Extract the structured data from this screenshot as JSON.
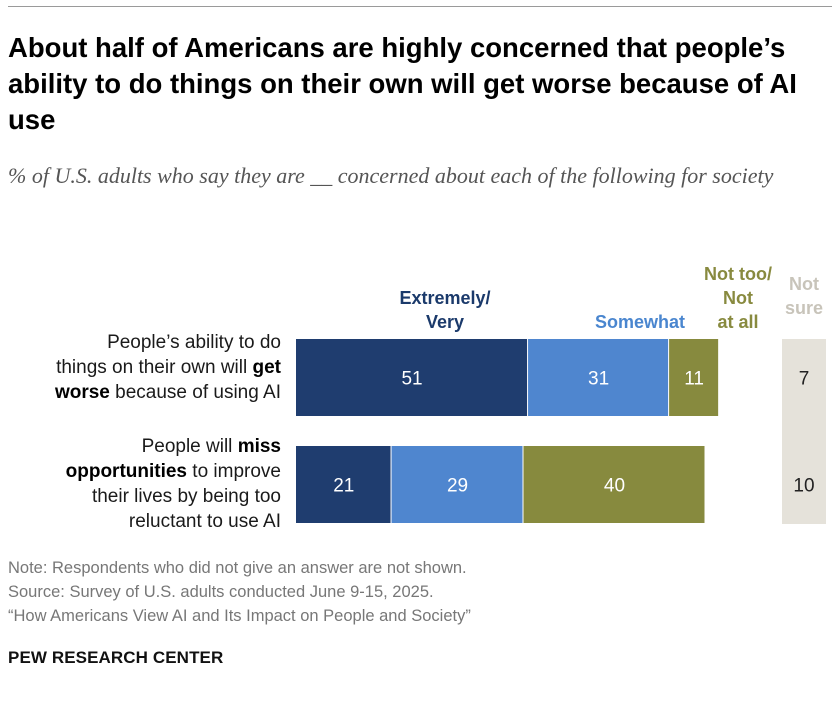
{
  "title": "About half of Americans are highly concerned that people’s ability to do things on their own will get worse because of AI use",
  "subtitle": "% of U.S. adults who say they are __ concerned about each of the following for society",
  "chart_data": {
    "type": "bar",
    "orientation": "horizontal",
    "stacked": true,
    "categories": [
      "People’s ability to do things on their own will get worse because of using AI",
      "People will miss opportunities to improve their lives by being too reluctant to use AI"
    ],
    "category_lines": [
      [
        [
          {
            "t": "People’s ability to do",
            "b": false
          }
        ],
        [
          {
            "t": "things on their own will ",
            "b": false
          },
          {
            "t": "get",
            "b": true
          }
        ],
        [
          {
            "t": "worse",
            "b": true
          },
          {
            "t": " because of using AI",
            "b": false
          }
        ]
      ],
      [
        [
          {
            "t": "People will ",
            "b": false
          },
          {
            "t": "miss",
            "b": true
          }
        ],
        [
          {
            "t": "opportunities",
            "b": true
          },
          {
            "t": " to improve",
            "b": false
          }
        ],
        [
          {
            "t": "their lives by being too",
            "b": false
          }
        ],
        [
          {
            "t": "reluctant to use AI",
            "b": false
          }
        ]
      ]
    ],
    "series": [
      {
        "name": "Extremely/ Very",
        "header_lines": [
          "Extremely/",
          "Very"
        ],
        "values": [
          51,
          21
        ],
        "color": "#1f3d6f",
        "label_color": "#ffffff"
      },
      {
        "name": "Somewhat",
        "header_lines": [
          "Somewhat"
        ],
        "values": [
          31,
          29
        ],
        "color": "#4f86cf",
        "label_color": "#ffffff"
      },
      {
        "name": "Not too/ Not at all",
        "header_lines": [
          "Not too/",
          "Not",
          "at all"
        ],
        "values": [
          11,
          40
        ],
        "color": "#878a3e",
        "label_color": "#ffffff"
      }
    ],
    "not_sure": {
      "name": "Not sure",
      "header_lines": [
        "Not",
        "sure"
      ],
      "values": [
        7,
        10
      ],
      "color": "#e5e2da",
      "label_color": "#222222"
    },
    "xlim": [
      0,
      100
    ],
    "grid": false,
    "legend": "column headers above bars"
  },
  "notes": [
    "Note: Respondents who did not give an answer are not shown.",
    "Source: Survey of U.S. adults conducted June 9-15, 2025.",
    "“How Americans View AI and Its Impact on People and Society”"
  ],
  "brand": "PEW RESEARCH CENTER"
}
